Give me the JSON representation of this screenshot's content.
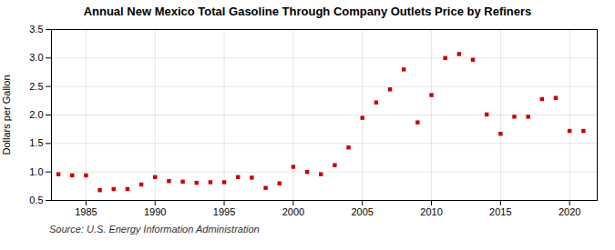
{
  "chart_data": {
    "type": "scatter",
    "title": "Annual New Mexico Total Gasoline Through Company Outlets Price by Refiners",
    "ylabel": "Dollars per Gallon",
    "annotations": [
      "Source: U.S. Energy Information Administration"
    ],
    "x": [
      1983,
      1984,
      1985,
      1986,
      1987,
      1988,
      1989,
      1990,
      1991,
      1992,
      1993,
      1994,
      1995,
      1996,
      1997,
      1998,
      1999,
      2000,
      2001,
      2002,
      2003,
      2004,
      2005,
      2006,
      2007,
      2008,
      2009,
      2010,
      2011,
      2012,
      2013,
      2014,
      2015,
      2016,
      2017,
      2018,
      2019,
      2020,
      2021
    ],
    "values": [
      0.96,
      0.94,
      0.94,
      0.68,
      0.7,
      0.7,
      0.78,
      0.91,
      0.84,
      0.83,
      0.81,
      0.82,
      0.82,
      0.91,
      0.9,
      0.72,
      0.8,
      1.09,
      1.0,
      0.96,
      1.12,
      1.43,
      1.95,
      2.22,
      2.45,
      2.8,
      1.87,
      2.35,
      3.0,
      3.07,
      2.97,
      2.01,
      1.67,
      1.97,
      1.97,
      2.28,
      2.3,
      1.72,
      1.72
    ],
    "color": "#cc0000",
    "marker": "square",
    "xlim": [
      1982.5,
      2022
    ],
    "ylim": [
      0.5,
      3.5
    ],
    "xticks": [
      1985,
      1990,
      1995,
      2000,
      2005,
      2010,
      2015,
      2020
    ],
    "yticks": [
      0.5,
      {
        "value": 1.0,
        "label": "1.0"
      },
      1.5,
      {
        "value": 2.0,
        "label": "2.0"
      },
      2.5,
      {
        "value": 3.0,
        "label": "3.0"
      },
      3.5
    ],
    "grid": true
  }
}
